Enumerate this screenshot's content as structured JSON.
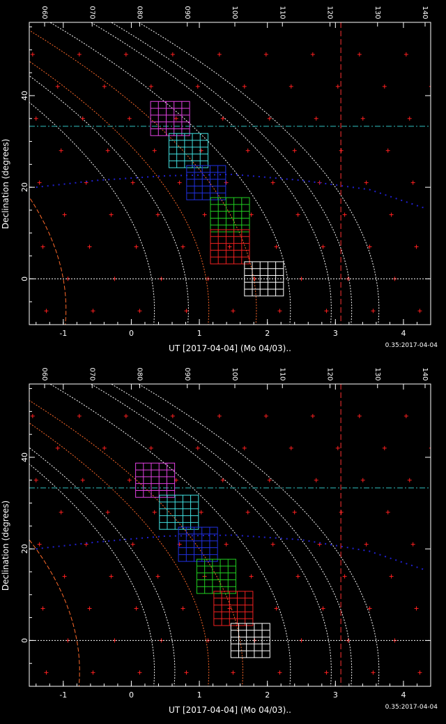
{
  "chart_data": [
    {
      "type": "scatter",
      "panel": "top",
      "title": "",
      "xlabel": "UT [2017-04-04] (Mo 04/03)..",
      "ylabel": "Declination (degrees)",
      "footer": "0.35:2017-04-04",
      "xlim": [
        -1.5,
        4.4
      ],
      "ylim": [
        -10,
        56
      ],
      "x_ticks": [
        "-1",
        "0",
        "1",
        "2",
        "3",
        "4"
      ],
      "y_ticks": [
        "0",
        "20",
        "40"
      ],
      "top_ticks": [
        "060",
        "070",
        "080",
        "090",
        "100",
        "110",
        "120",
        "130",
        "140"
      ],
      "grid_ra_deg": [
        56,
        60,
        66,
        70,
        76,
        80,
        86,
        90,
        96,
        100,
        106,
        110,
        116,
        120,
        124,
        130,
        136,
        140
      ],
      "grid_dec": [
        -7,
        0,
        7,
        14,
        21,
        28,
        35,
        42,
        49
      ],
      "equator_dec": 0,
      "horizontal_line_dec": 33.3,
      "vertical_line_x": 3.08,
      "ecliptic": {
        "x": [
          -1.4,
          -0.5,
          0.5,
          1.5,
          2.5,
          3.5,
          4.3
        ],
        "y": [
          20,
          21.5,
          22.5,
          22.8,
          21.5,
          19.5,
          15.5
        ]
      },
      "curves_x_at_dec0": [
        -1.0,
        0.3,
        0.8,
        1.1,
        1.8,
        2.3,
        2.9,
        3.2,
        3.6
      ],
      "fields": [
        {
          "color": "magenta",
          "x": 0.57,
          "dec": 35
        },
        {
          "color": "cyan",
          "x": 0.84,
          "dec": 28
        },
        {
          "color": "blue",
          "x": 1.1,
          "dec": 21
        },
        {
          "color": "green",
          "x": 1.45,
          "dec": 14
        },
        {
          "color": "red",
          "x": 1.45,
          "dec": 7
        },
        {
          "color": "white",
          "x": 1.95,
          "dec": 0
        }
      ]
    },
    {
      "type": "scatter",
      "panel": "bottom",
      "title": "",
      "xlabel": "UT [2017-04-04] (Mo 04/03)..",
      "ylabel": "Declination (degrees)",
      "footer": "0.35:2017-04-04",
      "xlim": [
        -1.5,
        4.4
      ],
      "ylim": [
        -10,
        56
      ],
      "x_ticks": [
        "-1",
        "0",
        "1",
        "2",
        "3",
        "4"
      ],
      "y_ticks": [
        "0",
        "20",
        "40"
      ],
      "top_ticks": [
        "060",
        "070",
        "080",
        "090",
        "100",
        "110",
        "120",
        "130",
        "140"
      ],
      "grid_ra_deg": [
        56,
        60,
        66,
        70,
        76,
        80,
        86,
        90,
        96,
        100,
        106,
        110,
        116,
        120,
        124,
        130,
        136,
        140
      ],
      "grid_dec": [
        -7,
        0,
        7,
        14,
        21,
        28,
        35,
        42,
        49
      ],
      "equator_dec": 0,
      "horizontal_line_dec": 33.3,
      "vertical_line_x": 3.08,
      "ecliptic": {
        "x": [
          -1.4,
          -0.5,
          0.5,
          1.5,
          2.5,
          3.5,
          4.3
        ],
        "y": [
          20,
          21.5,
          22.8,
          23,
          22,
          19.5,
          15.5
        ]
      },
      "curves_x_at_dec0": [
        -0.8,
        0.3,
        0.6,
        1.1,
        1.6,
        2.3,
        2.9,
        3.2,
        3.6
      ],
      "fields": [
        {
          "color": "magenta",
          "x": 0.35,
          "dec": 35
        },
        {
          "color": "cyan",
          "x": 0.7,
          "dec": 28
        },
        {
          "color": "blue",
          "x": 0.98,
          "dec": 21
        },
        {
          "color": "green",
          "x": 1.25,
          "dec": 14
        },
        {
          "color": "red",
          "x": 1.5,
          "dec": 7
        },
        {
          "color": "white",
          "x": 1.75,
          "dec": 0
        }
      ]
    }
  ],
  "colors": {
    "frame": "#ffffff",
    "grid_marker": "#ff2020",
    "dashed_line": "#ff3030",
    "orange_curve": "#ff6a2a",
    "white_curve": "#ffffff",
    "horizontal_line": "#30c0c0",
    "ecliptic": "#2020d0",
    "field_magenta": "#e040e0",
    "field_cyan": "#40e0e0",
    "field_blue": "#2030e0",
    "field_green": "#20d020",
    "field_red": "#f02020",
    "field_white": "#ffffff"
  }
}
